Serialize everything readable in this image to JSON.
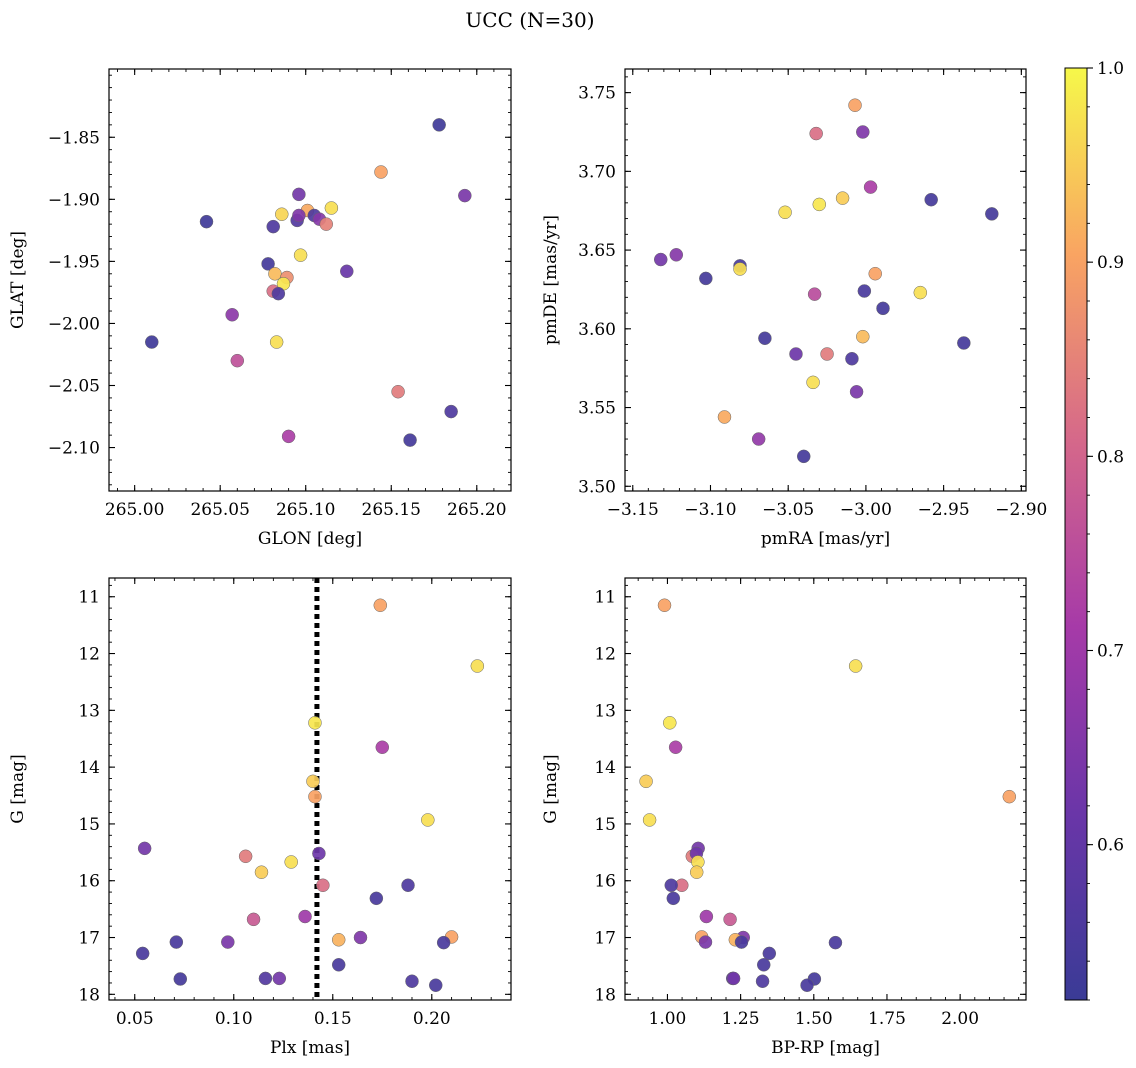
{
  "figure": {
    "title": "UCC (N=30)"
  },
  "colorbar": {
    "colormap": "plasma",
    "range": [
      0.52,
      1.0
    ],
    "ticks": [
      0.6,
      0.7,
      0.8,
      0.9,
      1.0
    ],
    "tick_labels": [
      "0.6",
      "0.7",
      "0.8",
      "0.9",
      "1.0"
    ]
  },
  "chart_data": [
    {
      "type": "scatter",
      "id": "glon-glat",
      "xlabel": "GLON [deg]",
      "ylabel": "GLAT [deg]",
      "xlim": [
        264.985,
        265.22
      ],
      "ylim": [
        -2.135,
        -1.795
      ],
      "y_inverted": false,
      "xticks": [
        265.0,
        265.05,
        265.1,
        265.15,
        265.2
      ],
      "xtick_labels": [
        "265.00",
        "265.05",
        "265.10",
        "265.15",
        "265.20"
      ],
      "yticks": [
        -1.85,
        -1.9,
        -1.95,
        -2.0,
        -2.05,
        -2.1
      ],
      "ytick_labels": [
        "−1.85",
        "−1.90",
        "−1.95",
        "−2.00",
        "−2.05",
        "−2.10"
      ],
      "points": [
        {
          "x": 265.178,
          "y": -1.84,
          "c": 0.53
        },
        {
          "x": 265.144,
          "y": -1.878,
          "c": 0.9
        },
        {
          "x": 265.193,
          "y": -1.897,
          "c": 0.64
        },
        {
          "x": 265.096,
          "y": -1.896,
          "c": 0.63
        },
        {
          "x": 265.115,
          "y": -1.907,
          "c": 0.97
        },
        {
          "x": 265.086,
          "y": -1.912,
          "c": 0.96
        },
        {
          "x": 265.101,
          "y": -1.909,
          "c": 0.91
        },
        {
          "x": 265.042,
          "y": -1.918,
          "c": 0.53
        },
        {
          "x": 265.081,
          "y": -1.922,
          "c": 0.56
        },
        {
          "x": 265.095,
          "y": -1.917,
          "c": 0.57
        },
        {
          "x": 265.105,
          "y": -1.913,
          "c": 0.56
        },
        {
          "x": 265.108,
          "y": -1.916,
          "c": 0.66
        },
        {
          "x": 265.112,
          "y": -1.92,
          "c": 0.85
        },
        {
          "x": 265.096,
          "y": -1.913,
          "c": 0.65
        },
        {
          "x": 265.097,
          "y": -1.945,
          "c": 0.97
        },
        {
          "x": 265.078,
          "y": -1.952,
          "c": 0.54
        },
        {
          "x": 265.124,
          "y": -1.958,
          "c": 0.61
        },
        {
          "x": 265.082,
          "y": -1.96,
          "c": 0.93
        },
        {
          "x": 265.089,
          "y": -1.963,
          "c": 0.87
        },
        {
          "x": 265.087,
          "y": -1.968,
          "c": 0.98
        },
        {
          "x": 265.081,
          "y": -1.974,
          "c": 0.82
        },
        {
          "x": 265.084,
          "y": -1.976,
          "c": 0.56
        },
        {
          "x": 265.057,
          "y": -1.993,
          "c": 0.67
        },
        {
          "x": 265.01,
          "y": -2.015,
          "c": 0.53
        },
        {
          "x": 265.083,
          "y": -2.015,
          "c": 0.97
        },
        {
          "x": 265.06,
          "y": -2.03,
          "c": 0.76
        },
        {
          "x": 265.154,
          "y": -2.055,
          "c": 0.84
        },
        {
          "x": 265.185,
          "y": -2.071,
          "c": 0.56
        },
        {
          "x": 265.09,
          "y": -2.091,
          "c": 0.72
        },
        {
          "x": 265.161,
          "y": -2.094,
          "c": 0.54
        }
      ]
    },
    {
      "type": "scatter",
      "id": "pmra-pmde",
      "xlabel": "pmRA [mas/yr]",
      "ylabel": "pmDE [mas/yr]",
      "xlim": [
        -3.155,
        -2.897
      ],
      "ylim": [
        3.497,
        3.765
      ],
      "y_inverted": false,
      "xticks": [
        -3.15,
        -3.1,
        -3.05,
        -3.0,
        -2.95,
        -2.9
      ],
      "xtick_labels": [
        "−3.15",
        "−3.10",
        "−3.05",
        "−3.00",
        "−2.95",
        "−2.90"
      ],
      "yticks": [
        3.5,
        3.55,
        3.6,
        3.65,
        3.7,
        3.75
      ],
      "ytick_labels": [
        "3.50",
        "3.55",
        "3.60",
        "3.65",
        "3.70",
        "3.75"
      ],
      "points": [
        {
          "x": -3.007,
          "y": 3.742,
          "c": 0.9
        },
        {
          "x": -3.032,
          "y": 3.724,
          "c": 0.82
        },
        {
          "x": -3.002,
          "y": 3.725,
          "c": 0.65
        },
        {
          "x": -2.997,
          "y": 3.69,
          "c": 0.72
        },
        {
          "x": -3.015,
          "y": 3.683,
          "c": 0.95
        },
        {
          "x": -3.03,
          "y": 3.679,
          "c": 0.98
        },
        {
          "x": -3.052,
          "y": 3.674,
          "c": 0.97
        },
        {
          "x": -2.958,
          "y": 3.682,
          "c": 0.54
        },
        {
          "x": -2.919,
          "y": 3.673,
          "c": 0.54
        },
        {
          "x": -3.122,
          "y": 3.647,
          "c": 0.66
        },
        {
          "x": -3.132,
          "y": 3.644,
          "c": 0.63
        },
        {
          "x": -3.081,
          "y": 3.64,
          "c": 0.55
        },
        {
          "x": -3.081,
          "y": 3.638,
          "c": 0.97
        },
        {
          "x": -3.103,
          "y": 3.632,
          "c": 0.54
        },
        {
          "x": -2.994,
          "y": 3.635,
          "c": 0.9
        },
        {
          "x": -3.001,
          "y": 3.624,
          "c": 0.55
        },
        {
          "x": -2.965,
          "y": 3.623,
          "c": 0.97
        },
        {
          "x": -3.033,
          "y": 3.622,
          "c": 0.75
        },
        {
          "x": -2.989,
          "y": 3.613,
          "c": 0.54
        },
        {
          "x": -3.065,
          "y": 3.594,
          "c": 0.54
        },
        {
          "x": -3.002,
          "y": 3.595,
          "c": 0.93
        },
        {
          "x": -2.937,
          "y": 3.591,
          "c": 0.54
        },
        {
          "x": -3.045,
          "y": 3.584,
          "c": 0.62
        },
        {
          "x": -3.025,
          "y": 3.584,
          "c": 0.84
        },
        {
          "x": -3.009,
          "y": 3.581,
          "c": 0.56
        },
        {
          "x": -3.034,
          "y": 3.566,
          "c": 0.97
        },
        {
          "x": -3.006,
          "y": 3.56,
          "c": 0.64
        },
        {
          "x": -3.091,
          "y": 3.544,
          "c": 0.91
        },
        {
          "x": -3.069,
          "y": 3.53,
          "c": 0.68
        },
        {
          "x": -3.04,
          "y": 3.519,
          "c": 0.54
        }
      ]
    },
    {
      "type": "scatter",
      "id": "plx-g",
      "xlabel": "Plx [mas]",
      "ylabel": "G [mag]",
      "xlim": [
        0.037,
        0.24
      ],
      "ylim": [
        10.67,
        18.1
      ],
      "y_inverted": true,
      "xticks": [
        0.05,
        0.1,
        0.15,
        0.2
      ],
      "xtick_labels": [
        "0.05",
        "0.10",
        "0.15",
        "0.20"
      ],
      "yticks": [
        11,
        12,
        13,
        14,
        15,
        16,
        17,
        18
      ],
      "ytick_labels": [
        "11",
        "12",
        "13",
        "14",
        "15",
        "16",
        "17",
        "18"
      ],
      "vline": {
        "x": 0.142,
        "style": "dotted"
      },
      "points": [
        {
          "x": 0.174,
          "y": 11.15,
          "c": 0.9
        },
        {
          "x": 0.223,
          "y": 12.22,
          "c": 0.97
        },
        {
          "x": 0.141,
          "y": 13.22,
          "c": 0.98
        },
        {
          "x": 0.175,
          "y": 13.65,
          "c": 0.72
        },
        {
          "x": 0.14,
          "y": 14.25,
          "c": 0.95
        },
        {
          "x": 0.141,
          "y": 14.52,
          "c": 0.9
        },
        {
          "x": 0.198,
          "y": 14.93,
          "c": 0.97
        },
        {
          "x": 0.055,
          "y": 15.43,
          "c": 0.63
        },
        {
          "x": 0.106,
          "y": 15.57,
          "c": 0.84
        },
        {
          "x": 0.143,
          "y": 15.52,
          "c": 0.62
        },
        {
          "x": 0.129,
          "y": 15.67,
          "c": 0.97
        },
        {
          "x": 0.114,
          "y": 15.85,
          "c": 0.95
        },
        {
          "x": 0.145,
          "y": 16.08,
          "c": 0.82
        },
        {
          "x": 0.188,
          "y": 16.08,
          "c": 0.56
        },
        {
          "x": 0.172,
          "y": 16.31,
          "c": 0.55
        },
        {
          "x": 0.136,
          "y": 16.63,
          "c": 0.7
        },
        {
          "x": 0.11,
          "y": 16.68,
          "c": 0.78
        },
        {
          "x": 0.164,
          "y": 17.0,
          "c": 0.65
        },
        {
          "x": 0.21,
          "y": 16.99,
          "c": 0.9
        },
        {
          "x": 0.153,
          "y": 17.04,
          "c": 0.92
        },
        {
          "x": 0.097,
          "y": 17.08,
          "c": 0.64
        },
        {
          "x": 0.071,
          "y": 17.08,
          "c": 0.55
        },
        {
          "x": 0.206,
          "y": 17.09,
          "c": 0.55
        },
        {
          "x": 0.054,
          "y": 17.28,
          "c": 0.55
        },
        {
          "x": 0.153,
          "y": 17.48,
          "c": 0.55
        },
        {
          "x": 0.073,
          "y": 17.73,
          "c": 0.54
        },
        {
          "x": 0.116,
          "y": 17.72,
          "c": 0.57
        },
        {
          "x": 0.123,
          "y": 17.72,
          "c": 0.63
        },
        {
          "x": 0.19,
          "y": 17.77,
          "c": 0.56
        },
        {
          "x": 0.202,
          "y": 17.84,
          "c": 0.55
        }
      ]
    },
    {
      "type": "scatter",
      "id": "bprp-g",
      "xlabel": "BP-RP [mag]",
      "ylabel": "G [mag]",
      "xlim": [
        0.855,
        2.225
      ],
      "ylim": [
        10.67,
        18.1
      ],
      "y_inverted": true,
      "xticks": [
        1.0,
        1.25,
        1.5,
        1.75,
        2.0
      ],
      "xtick_labels": [
        "1.00",
        "1.25",
        "1.50",
        "1.75",
        "2.00"
      ],
      "yticks": [
        11,
        12,
        13,
        14,
        15,
        16,
        17,
        18
      ],
      "ytick_labels": [
        "11",
        "12",
        "13",
        "14",
        "15",
        "16",
        "17",
        "18"
      ],
      "points": [
        {
          "x": 0.99,
          "y": 11.15,
          "c": 0.9
        },
        {
          "x": 1.643,
          "y": 12.22,
          "c": 0.97
        },
        {
          "x": 1.008,
          "y": 13.22,
          "c": 0.98
        },
        {
          "x": 1.028,
          "y": 13.65,
          "c": 0.72
        },
        {
          "x": 0.927,
          "y": 14.25,
          "c": 0.95
        },
        {
          "x": 2.168,
          "y": 14.52,
          "c": 0.9
        },
        {
          "x": 0.939,
          "y": 14.93,
          "c": 0.97
        },
        {
          "x": 1.105,
          "y": 15.43,
          "c": 0.63
        },
        {
          "x": 1.085,
          "y": 15.57,
          "c": 0.84
        },
        {
          "x": 1.099,
          "y": 15.52,
          "c": 0.62
        },
        {
          "x": 1.104,
          "y": 15.67,
          "c": 0.97
        },
        {
          "x": 1.1,
          "y": 15.85,
          "c": 0.95
        },
        {
          "x": 1.049,
          "y": 16.08,
          "c": 0.82
        },
        {
          "x": 1.013,
          "y": 16.08,
          "c": 0.56
        },
        {
          "x": 1.02,
          "y": 16.31,
          "c": 0.55
        },
        {
          "x": 1.133,
          "y": 16.63,
          "c": 0.7
        },
        {
          "x": 1.214,
          "y": 16.68,
          "c": 0.78
        },
        {
          "x": 1.259,
          "y": 17.0,
          "c": 0.65
        },
        {
          "x": 1.117,
          "y": 16.99,
          "c": 0.9
        },
        {
          "x": 1.232,
          "y": 17.04,
          "c": 0.92
        },
        {
          "x": 1.13,
          "y": 17.08,
          "c": 0.64
        },
        {
          "x": 1.253,
          "y": 17.08,
          "c": 0.55
        },
        {
          "x": 1.574,
          "y": 17.09,
          "c": 0.55
        },
        {
          "x": 1.348,
          "y": 17.28,
          "c": 0.55
        },
        {
          "x": 1.329,
          "y": 17.48,
          "c": 0.55
        },
        {
          "x": 1.502,
          "y": 17.73,
          "c": 0.54
        },
        {
          "x": 1.223,
          "y": 17.72,
          "c": 0.57
        },
        {
          "x": 1.226,
          "y": 17.72,
          "c": 0.63
        },
        {
          "x": 1.325,
          "y": 17.77,
          "c": 0.56
        },
        {
          "x": 1.477,
          "y": 17.84,
          "c": 0.55
        }
      ]
    }
  ]
}
